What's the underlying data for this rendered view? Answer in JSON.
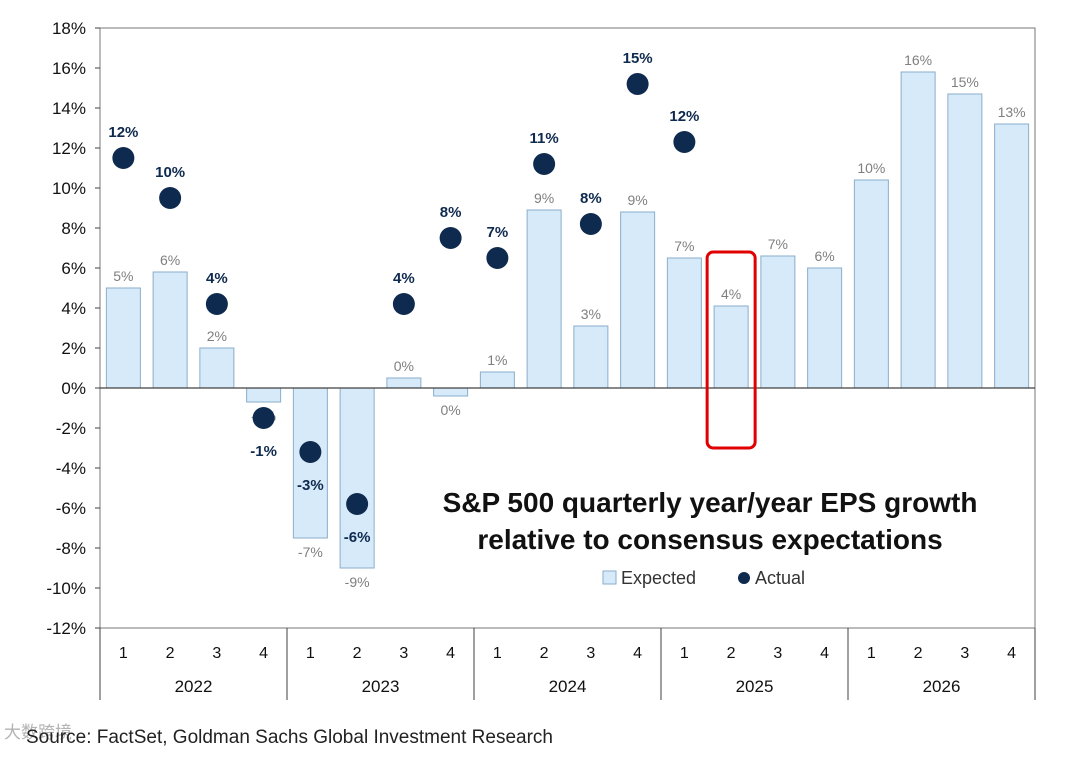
{
  "chart_data": {
    "type": "bar",
    "title_line1": "S&P 500 quarterly year/year EPS growth",
    "title_line2": "relative to consensus expectations",
    "ylim": [
      -12,
      18
    ],
    "y_ticks": [
      -12,
      -10,
      -8,
      -6,
      -4,
      -2,
      0,
      2,
      4,
      6,
      8,
      10,
      12,
      14,
      16,
      18
    ],
    "y_tick_labels": [
      "-12%",
      "-10%",
      "-8%",
      "-6%",
      "-4%",
      "-2%",
      "0%",
      "2%",
      "4%",
      "6%",
      "8%",
      "10%",
      "12%",
      "14%",
      "16%",
      "18%"
    ],
    "quarter_labels": [
      "1",
      "2",
      "3",
      "4",
      "1",
      "2",
      "3",
      "4",
      "1",
      "2",
      "3",
      "4",
      "1",
      "2",
      "3",
      "4",
      "1",
      "2",
      "3",
      "4"
    ],
    "years": [
      "2022",
      "2023",
      "2024",
      "2025",
      "2026"
    ],
    "series": [
      {
        "name": "Expected",
        "color": "#d6eafa",
        "edge": "#8aaecb",
        "values": [
          5.0,
          5.8,
          2.0,
          -0.7,
          -7.5,
          -9.0,
          0.5,
          -0.4,
          0.8,
          8.9,
          3.1,
          8.8,
          6.5,
          4.1,
          6.6,
          6.0,
          10.4,
          15.8,
          14.7,
          13.2
        ],
        "labels": [
          "5%",
          "6%",
          "2%",
          "-1%",
          "-7%",
          "-9%",
          "0%",
          "0%",
          "1%",
          "9%",
          "3%",
          "9%",
          "7%",
          "4%",
          "7%",
          "6%",
          "10%",
          "16%",
          "15%",
          "13%"
        ]
      },
      {
        "name": "Actual",
        "color": "#0f2a4f",
        "values": [
          11.5,
          9.5,
          4.2,
          -1.5,
          -3.2,
          -5.8,
          4.2,
          7.5,
          6.5,
          11.2,
          8.2,
          15.2,
          12.3,
          null,
          null,
          null,
          null,
          null,
          null,
          null
        ],
        "labels": [
          "12%",
          "10%",
          "4%",
          "-1%",
          "-3%",
          "-6%",
          "4%",
          "8%",
          "7%",
          "11%",
          "8%",
          "15%",
          "12%",
          "",
          "",
          "",
          "",
          "",
          "",
          ""
        ]
      }
    ],
    "highlight_index": 13,
    "highlight_color": "#e00000",
    "axis_color": "#404040"
  },
  "source": "Source: FactSet, Goldman Sachs Global Investment Research",
  "watermark": "大数跨境"
}
